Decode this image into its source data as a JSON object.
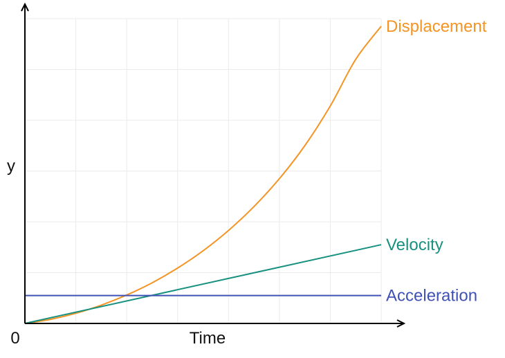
{
  "chart_data": {
    "type": "line",
    "title": "",
    "xlabel": "Time",
    "ylabel": "y",
    "origin_label": "0",
    "grid": true,
    "legend": "inline-right",
    "xlim": [
      0,
      7
    ],
    "ylim": [
      0,
      6
    ],
    "series": [
      {
        "name": "Displacement",
        "color": "#f39424",
        "x": [
          0,
          0.5,
          1,
          1.5,
          2,
          2.5,
          3,
          3.5,
          4,
          4.5,
          5,
          5.5,
          6,
          6.5,
          7
        ],
        "values": [
          0,
          0.08,
          0.2,
          0.36,
          0.56,
          0.8,
          1.09,
          1.43,
          1.83,
          2.3,
          2.85,
          3.5,
          4.28,
          5.2,
          5.85
        ]
      },
      {
        "name": "Velocity",
        "color": "#17917f",
        "x": [
          0,
          7
        ],
        "values": [
          0,
          1.55
        ]
      },
      {
        "name": "Acceleration",
        "color": "#3f51b5",
        "x": [
          0,
          7
        ],
        "values": [
          0.55,
          0.55
        ]
      }
    ]
  }
}
